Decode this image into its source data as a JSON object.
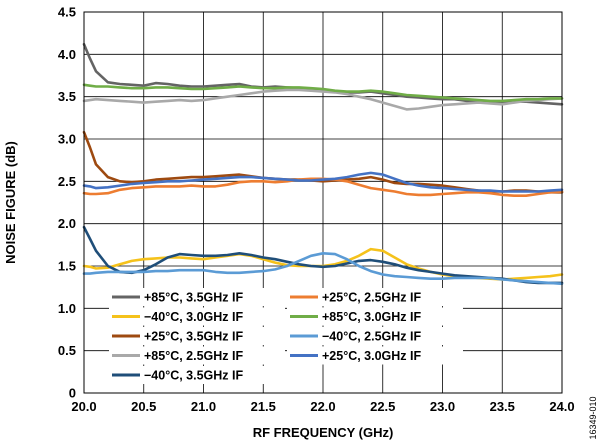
{
  "figure_id": "16349-010",
  "chart_data": {
    "type": "line",
    "xlabel": "RF FREQUENCY (GHz)",
    "ylabel": "NOISE FIGURE (dB)",
    "xlim": [
      20.0,
      24.0
    ],
    "ylim": [
      0,
      4.5
    ],
    "xticks": [
      "20.0",
      "20.5",
      "21.0",
      "21.5",
      "22.0",
      "22.5",
      "23.0",
      "23.5",
      "24.0"
    ],
    "yticks": [
      "0",
      "0.5",
      "1.0",
      "1.5",
      "2.0",
      "2.5",
      "3.0",
      "3.5",
      "4.0",
      "4.5"
    ],
    "grid": true,
    "legend_position": "bottom-left",
    "x": [
      20.0,
      20.05,
      20.1,
      20.2,
      20.3,
      20.4,
      20.5,
      20.6,
      20.7,
      20.8,
      20.9,
      21.0,
      21.1,
      21.2,
      21.3,
      21.4,
      21.5,
      21.6,
      21.7,
      21.8,
      21.9,
      22.0,
      22.1,
      22.2,
      22.3,
      22.4,
      22.5,
      22.6,
      22.7,
      22.8,
      22.9,
      23.0,
      23.1,
      23.2,
      23.3,
      23.4,
      23.5,
      23.6,
      23.7,
      23.8,
      23.9,
      24.0
    ],
    "series": [
      {
        "name": "+85°C, 3.5GHz IF",
        "color": "#646464",
        "values": [
          4.12,
          3.95,
          3.8,
          3.67,
          3.65,
          3.64,
          3.63,
          3.66,
          3.65,
          3.63,
          3.62,
          3.62,
          3.63,
          3.64,
          3.65,
          3.62,
          3.61,
          3.62,
          3.61,
          3.6,
          3.59,
          3.57,
          3.56,
          3.55,
          3.55,
          3.56,
          3.54,
          3.52,
          3.5,
          3.49,
          3.48,
          3.47,
          3.47,
          3.45,
          3.44,
          3.44,
          3.43,
          3.44,
          3.44,
          3.43,
          3.42,
          3.41
        ]
      },
      {
        "name": "−40°C, 3.0GHz IF",
        "color": "#f5c21b",
        "values": [
          1.5,
          1.49,
          1.47,
          1.48,
          1.52,
          1.56,
          1.58,
          1.59,
          1.6,
          1.6,
          1.59,
          1.58,
          1.6,
          1.62,
          1.64,
          1.62,
          1.58,
          1.54,
          1.51,
          1.5,
          1.5,
          1.5,
          1.52,
          1.56,
          1.62,
          1.7,
          1.68,
          1.6,
          1.52,
          1.47,
          1.43,
          1.4,
          1.38,
          1.37,
          1.36,
          1.35,
          1.34,
          1.35,
          1.36,
          1.37,
          1.38,
          1.4
        ]
      },
      {
        "name": "+25°C, 3.5GHz IF",
        "color": "#9e4a10",
        "values": [
          3.08,
          2.9,
          2.7,
          2.55,
          2.5,
          2.49,
          2.5,
          2.52,
          2.53,
          2.54,
          2.55,
          2.55,
          2.56,
          2.57,
          2.58,
          2.56,
          2.54,
          2.53,
          2.52,
          2.52,
          2.51,
          2.5,
          2.51,
          2.52,
          2.53,
          2.55,
          2.52,
          2.48,
          2.47,
          2.47,
          2.46,
          2.45,
          2.43,
          2.41,
          2.39,
          2.38,
          2.38,
          2.39,
          2.39,
          2.38,
          2.37,
          2.37
        ]
      },
      {
        "name": "+85°C, 2.5GHz IF",
        "color": "#a9a9a9",
        "values": [
          3.45,
          3.46,
          3.47,
          3.46,
          3.45,
          3.44,
          3.43,
          3.44,
          3.45,
          3.46,
          3.45,
          3.46,
          3.48,
          3.5,
          3.52,
          3.54,
          3.56,
          3.57,
          3.58,
          3.58,
          3.57,
          3.56,
          3.55,
          3.53,
          3.5,
          3.47,
          3.43,
          3.39,
          3.35,
          3.36,
          3.38,
          3.4,
          3.41,
          3.42,
          3.43,
          3.42,
          3.41,
          3.43,
          3.45,
          3.46,
          3.47,
          3.48
        ]
      },
      {
        "name": "−40°C, 3.5GHz IF",
        "color": "#1f4e79",
        "values": [
          1.96,
          1.82,
          1.68,
          1.5,
          1.43,
          1.42,
          1.45,
          1.52,
          1.6,
          1.64,
          1.63,
          1.62,
          1.62,
          1.63,
          1.65,
          1.63,
          1.6,
          1.58,
          1.55,
          1.52,
          1.5,
          1.49,
          1.5,
          1.53,
          1.56,
          1.57,
          1.55,
          1.52,
          1.48,
          1.45,
          1.43,
          1.41,
          1.39,
          1.38,
          1.37,
          1.36,
          1.35,
          1.33,
          1.31,
          1.3,
          1.3,
          1.3
        ]
      },
      {
        "name": "+25°C, 2.5GHz IF",
        "color": "#ed7d31",
        "values": [
          2.36,
          2.35,
          2.35,
          2.36,
          2.4,
          2.42,
          2.43,
          2.44,
          2.44,
          2.44,
          2.45,
          2.44,
          2.44,
          2.46,
          2.49,
          2.5,
          2.5,
          2.49,
          2.5,
          2.52,
          2.53,
          2.53,
          2.52,
          2.5,
          2.46,
          2.42,
          2.4,
          2.38,
          2.35,
          2.34,
          2.34,
          2.35,
          2.36,
          2.37,
          2.37,
          2.36,
          2.34,
          2.33,
          2.33,
          2.35,
          2.37,
          2.38
        ]
      },
      {
        "name": "+85°C, 3.0GHz IF",
        "color": "#70ad47",
        "values": [
          3.64,
          3.63,
          3.62,
          3.62,
          3.61,
          3.6,
          3.6,
          3.61,
          3.61,
          3.6,
          3.59,
          3.59,
          3.6,
          3.61,
          3.62,
          3.61,
          3.6,
          3.6,
          3.61,
          3.61,
          3.6,
          3.59,
          3.57,
          3.56,
          3.56,
          3.57,
          3.56,
          3.54,
          3.52,
          3.51,
          3.5,
          3.49,
          3.48,
          3.47,
          3.46,
          3.45,
          3.45,
          3.46,
          3.47,
          3.47,
          3.48,
          3.48
        ]
      },
      {
        "name": "−40°C, 2.5GHz IF",
        "color": "#5b9bd5",
        "values": [
          1.41,
          1.41,
          1.42,
          1.43,
          1.43,
          1.43,
          1.43,
          1.44,
          1.44,
          1.45,
          1.45,
          1.45,
          1.43,
          1.42,
          1.42,
          1.43,
          1.44,
          1.46,
          1.5,
          1.56,
          1.62,
          1.65,
          1.64,
          1.58,
          1.5,
          1.44,
          1.4,
          1.38,
          1.37,
          1.36,
          1.35,
          1.35,
          1.36,
          1.36,
          1.36,
          1.36,
          1.34,
          1.33,
          1.32,
          1.31,
          1.3,
          1.29
        ]
      },
      {
        "name": "+25°C, 3.0GHz IF",
        "color": "#4472c4",
        "values": [
          2.45,
          2.44,
          2.42,
          2.43,
          2.45,
          2.47,
          2.48,
          2.49,
          2.5,
          2.5,
          2.51,
          2.52,
          2.53,
          2.54,
          2.55,
          2.55,
          2.54,
          2.53,
          2.52,
          2.51,
          2.51,
          2.52,
          2.53,
          2.55,
          2.58,
          2.6,
          2.58,
          2.53,
          2.48,
          2.45,
          2.43,
          2.42,
          2.41,
          2.4,
          2.39,
          2.39,
          2.38,
          2.38,
          2.38,
          2.38,
          2.39,
          2.4
        ]
      }
    ]
  }
}
